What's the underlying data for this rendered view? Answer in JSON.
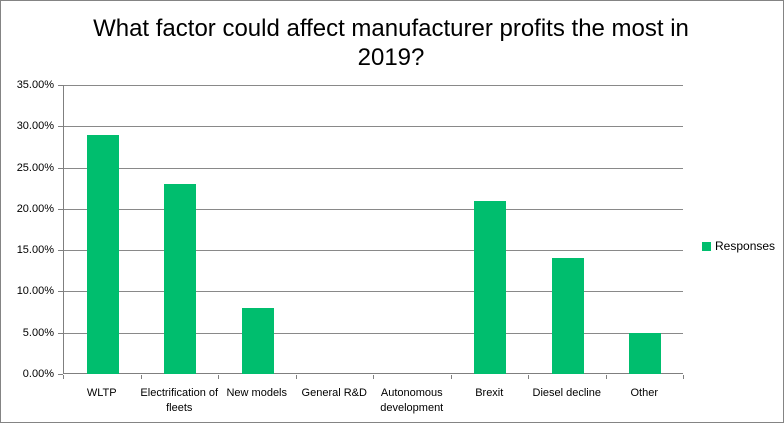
{
  "chart_data": {
    "type": "bar",
    "title": "What factor could affect manufacturer profits the most in 2019?",
    "categories": [
      "WLTP",
      "Electrification of fleets",
      "New models",
      "General R&D",
      "Autonomous development",
      "Brexit",
      "Diesel decline",
      "Other"
    ],
    "series": [
      {
        "name": "Responses",
        "values": [
          29,
          23,
          8,
          0,
          0,
          21,
          14,
          5
        ]
      }
    ],
    "value_unit": "%",
    "ylim": [
      0,
      35
    ],
    "y_tick_labels": [
      "35.00%",
      "30.00%",
      "25.00%",
      "20.00%",
      "15.00%",
      "10.00%",
      "5.00%",
      "0.00%"
    ],
    "xlabel": "",
    "ylabel": "",
    "grid": true,
    "legend": {
      "position": "right",
      "label": "Responses"
    },
    "colors": {
      "bar": "#00BE6E",
      "gridline": "#898989",
      "axis": "#7F7F7F",
      "text": "#000000",
      "border": "#848484",
      "background": "#FFFFFF"
    }
  }
}
